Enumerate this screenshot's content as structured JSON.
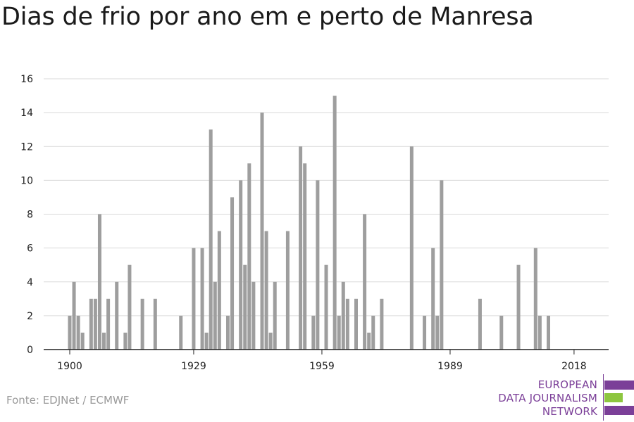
{
  "title": "Dias de frio por ano em e perto de Manresa",
  "source": "Fonte: EDJNet / ECMWF",
  "logo": {
    "lines": [
      "EUROPEAN",
      "DATA JOURNALISM",
      "NETWORK"
    ],
    "colors": {
      "purple": "#7b3f98",
      "green": "#8dc63f"
    }
  },
  "colors": {
    "bar": "#9e9e9e",
    "grid": "#d9d9d9",
    "axis": "#222222"
  },
  "chart_data": {
    "type": "bar",
    "grid": true,
    "ylim": [
      0,
      16
    ],
    "yticks": [
      0,
      2,
      4,
      6,
      8,
      10,
      12,
      14,
      16
    ],
    "xlim": [
      1899,
      2022
    ],
    "xticks": [
      1900,
      1929,
      1959,
      1989,
      2018
    ],
    "x": [
      1900,
      1901,
      1902,
      1903,
      1905,
      1906,
      1907,
      1908,
      1909,
      1911,
      1913,
      1914,
      1917,
      1920,
      1926,
      1929,
      1931,
      1932,
      1933,
      1934,
      1935,
      1937,
      1938,
      1940,
      1941,
      1942,
      1943,
      1945,
      1946,
      1947,
      1948,
      1951,
      1954,
      1955,
      1957,
      1958,
      1960,
      1962,
      1963,
      1964,
      1965,
      1967,
      1969,
      1970,
      1971,
      1973,
      1980,
      1983,
      1985,
      1986,
      1987,
      1996,
      2001,
      2005,
      2009,
      2010,
      2012
    ],
    "values": [
      2,
      4,
      2,
      1,
      3,
      3,
      8,
      1,
      3,
      4,
      1,
      5,
      3,
      3,
      2,
      6,
      6,
      1,
      13,
      4,
      7,
      2,
      9,
      10,
      5,
      11,
      4,
      14,
      7,
      1,
      4,
      7,
      12,
      11,
      2,
      10,
      5,
      15,
      2,
      4,
      3,
      3,
      8,
      1,
      2,
      3,
      12,
      2,
      6,
      2,
      10,
      3,
      2,
      5,
      6,
      2,
      2
    ]
  }
}
